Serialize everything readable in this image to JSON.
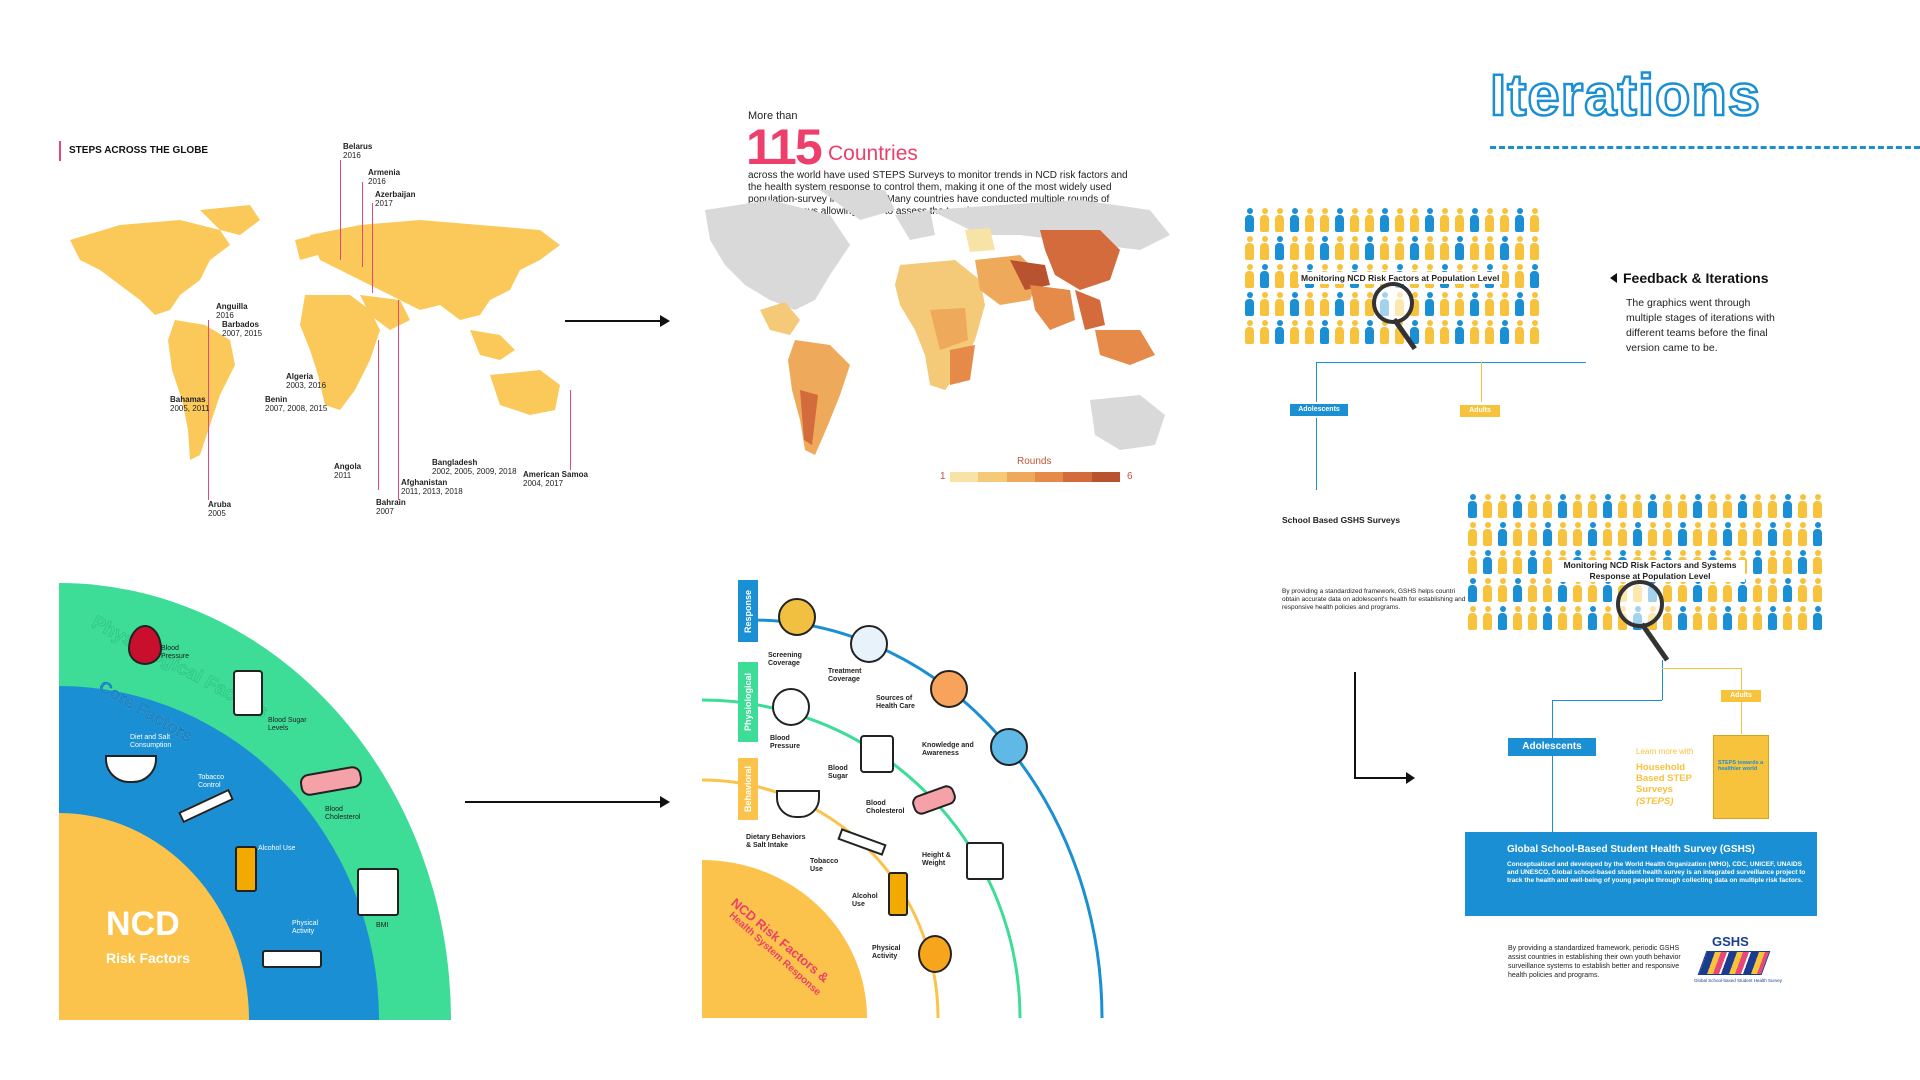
{
  "title": "Iterations",
  "feedback": {
    "heading": "Feedback & Iterations",
    "body": "The graphics went through multiple stages of iterations with different teams before the final version came to be."
  },
  "map1": {
    "title": "STEPS ACROSS THE GLOBE",
    "labels": [
      {
        "name": "Belarus",
        "years": "2016"
      },
      {
        "name": "Armenia",
        "years": "2016"
      },
      {
        "name": "Azerbaijan",
        "years": "2017"
      },
      {
        "name": "Anguilla",
        "years": "2016"
      },
      {
        "name": "Barbados",
        "years": "2007, 2015"
      },
      {
        "name": "Bahamas",
        "years": "2005, 2011"
      },
      {
        "name": "Algeria",
        "years": "2003, 2016"
      },
      {
        "name": "Benin",
        "years": "2007, 2008, 2015"
      },
      {
        "name": "Angola",
        "years": "2011"
      },
      {
        "name": "Aruba",
        "years": "2005"
      },
      {
        "name": "Bahrain",
        "years": "2007"
      },
      {
        "name": "Afghanistan",
        "years": "2011, 2013, 2018"
      },
      {
        "name": "Bangladesh",
        "years": "2002, 2005, 2009, 2018"
      },
      {
        "name": "American Samoa",
        "years": "2004, 2017"
      }
    ]
  },
  "map2": {
    "more_than": "More than",
    "count": "115",
    "countries": "Countries",
    "desc": "across the world have used STEPS Surveys to monitor trends in NCD risk factors and the health system response to control them, making it one of the most widely used population-survey in the world. Many countries have conducted multiple rounds of STEPS surveys allowing them to assess the trends over time.",
    "legend_title": "Rounds",
    "legend_min": "1",
    "legend_max": "6",
    "legend_colors": [
      "#f8e3a6",
      "#f4c978",
      "#eea95a",
      "#e58a48",
      "#d46b3c",
      "#b9532f"
    ]
  },
  "ncd1": {
    "outer_title": "Physiological Factors",
    "middle_title": "Core Factors",
    "center_title": "NCD",
    "center_sub": "Risk Factors",
    "items": {
      "bp": "Blood Pressure",
      "sugar": "Blood Sugar Levels",
      "diet": "Diet and Salt Consumption",
      "tobacco": "Tobacco Control",
      "chol": "Blood Cholesterol",
      "alcohol": "Alcohol Use",
      "bmi": "BMI",
      "activity": "Physical Activity"
    },
    "colors": {
      "outer": "#3ddc97",
      "middle": "#1b8fd3",
      "inner": "#fbc34b"
    }
  },
  "ncd2": {
    "bands": [
      "Response",
      "Physiological",
      "Behavioral"
    ],
    "items": {
      "screening": "Screening Coverage",
      "treatment": "Treatment Coverage",
      "sources": "Sources of Health Care",
      "knowledge": "Knowledge and Awareness",
      "bp": "Blood Pressure",
      "sugar": "Blood Sugar",
      "chol": "Blood Cholesterol",
      "height": "Height & Weight",
      "diet": "Dietary Behaviors & Salt Intake",
      "tobacco": "Tobacco Use",
      "alcohol": "Alcohol Use",
      "activity": "Physical Activity"
    },
    "center_title": "NCD Risk Factors &",
    "center_sub": "Health System Response"
  },
  "gshs1": {
    "monitoring": "Monitoring NCD Risk Factors at Population Level",
    "adolescents": "Adolescents",
    "adults": "Adults",
    "school": "School Based GSHS Surveys",
    "desc": "By providing a standardized framework, GSHS helps countri obtain accurate data on adolescent's health for establishing and responsive health policies and programs."
  },
  "gshs2": {
    "monitoring": "Monitoring NCD Risk Factors and Systems Response at Population Level",
    "adults": "Adults",
    "adolescents": "Adolescents",
    "learn_more": "Learn more with",
    "household": "Household Based STEP Surveys",
    "steps": "(STEPS)",
    "book_title": "STEPS towards a healthier world",
    "box_title": "Global School-Based Student Health Survey (GSHS)",
    "box_body": "Conceptualized and developed by the World Health Organization (WHO), CDC, UNICEF, UNAIDS and UNESCO, Global school-based student health survey is an integrated surveillance project to track the health and well-being of young people through collecting data on multiple risk factors.",
    "bottom_text": "By providing a standardized framework, periodic GSHS assist countries in establishing their own youth behavior surveillance systems to establish better and responsive health policies and programs.",
    "logo_text": "GSHS",
    "logo_sub": "Global School-based Student Health Survey"
  }
}
